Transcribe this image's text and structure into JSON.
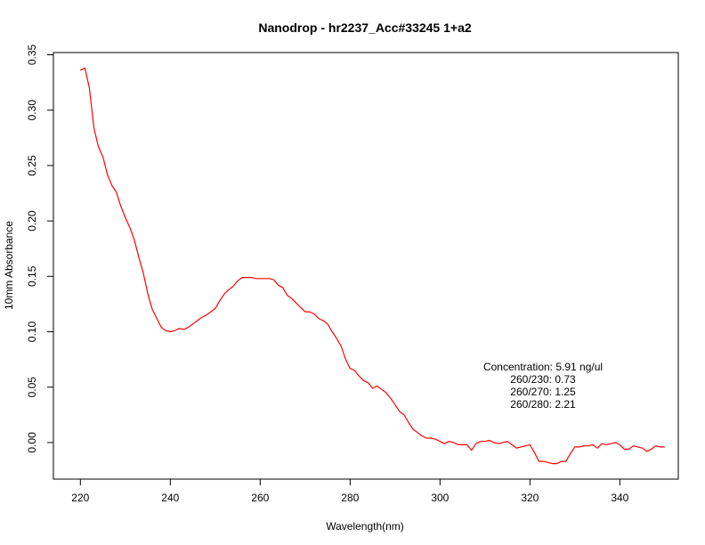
{
  "chart_data": {
    "type": "line",
    "title": "Nanodrop - hr2237_Acc#33245 1+a2",
    "xlabel": "Wavelength(nm)",
    "ylabel": "10mm Absorbance",
    "xlim": [
      214,
      353
    ],
    "ylim": [
      -0.033,
      0.352
    ],
    "xticks": [
      220,
      240,
      260,
      280,
      300,
      320,
      340
    ],
    "xtick_labels": [
      "220",
      "240",
      "260",
      "280",
      "300",
      "320",
      "340"
    ],
    "yticks": [
      0.0,
      0.05,
      0.1,
      0.15,
      0.2,
      0.25,
      0.3,
      0.35
    ],
    "ytick_labels": [
      "0.00",
      "0.05",
      "0.10",
      "0.15",
      "0.20",
      "0.25",
      "0.30",
      "0.35"
    ],
    "grid": false,
    "line_color": "#ff0000",
    "annotations": [
      "Concentration: 5.91 ng/ul",
      "260/230: 0.73",
      "260/270: 1.25",
      "260/280: 2.21"
    ],
    "series": [
      {
        "x": [
          220,
          221,
          222,
          223,
          224,
          225,
          226,
          227,
          228,
          229,
          230,
          231,
          232,
          233,
          234,
          235,
          236,
          237,
          238,
          239,
          240,
          241,
          242,
          243,
          244,
          245,
          246,
          247,
          248,
          249,
          250,
          251,
          252,
          253,
          254,
          255,
          256,
          257,
          258,
          259,
          260,
          261,
          262,
          263,
          264,
          265,
          266,
          267,
          268,
          269,
          270,
          271,
          272,
          273,
          274,
          275,
          276,
          277,
          278,
          279,
          280,
          281,
          282,
          283,
          284,
          285,
          286,
          287,
          288,
          289,
          290,
          291,
          292,
          293,
          294,
          295,
          296,
          297,
          298,
          299,
          300,
          301,
          302,
          303,
          304,
          305,
          306,
          307,
          308,
          309,
          310,
          311,
          312,
          313,
          314,
          315,
          316,
          317,
          318,
          319,
          320,
          321,
          322,
          323,
          324,
          325,
          326,
          327,
          328,
          329,
          330,
          331,
          332,
          333,
          334,
          335,
          336,
          337,
          338,
          339,
          340,
          341,
          342,
          343,
          344,
          345,
          346,
          347,
          348,
          349,
          350
        ],
        "values": [
          0.336,
          0.338,
          0.32,
          0.284,
          0.267,
          0.258,
          0.242,
          0.232,
          0.226,
          0.213,
          0.203,
          0.194,
          0.183,
          0.167,
          0.153,
          0.134,
          0.12,
          0.112,
          0.104,
          0.101,
          0.1,
          0.101,
          0.103,
          0.102,
          0.104,
          0.107,
          0.11,
          0.113,
          0.115,
          0.118,
          0.121,
          0.128,
          0.134,
          0.138,
          0.141,
          0.146,
          0.149,
          0.149,
          0.149,
          0.148,
          0.148,
          0.148,
          0.148,
          0.147,
          0.142,
          0.14,
          0.133,
          0.13,
          0.126,
          0.122,
          0.118,
          0.118,
          0.116,
          0.112,
          0.11,
          0.107,
          0.1,
          0.094,
          0.087,
          0.075,
          0.067,
          0.065,
          0.06,
          0.056,
          0.054,
          0.049,
          0.051,
          0.048,
          0.045,
          0.04,
          0.034,
          0.028,
          0.025,
          0.018,
          0.012,
          0.009,
          0.006,
          0.004,
          0.004,
          0.003,
          0.001,
          -0.001,
          0.001,
          0.0,
          -0.002,
          -0.002,
          -0.002,
          -0.007,
          -0.001,
          0.001,
          0.001,
          0.002,
          0.0,
          -0.001,
          0.0,
          0.001,
          -0.002,
          -0.005,
          -0.004,
          -0.003,
          -0.002,
          -0.009,
          -0.017,
          -0.017,
          -0.018,
          -0.019,
          -0.019,
          -0.017,
          -0.017,
          -0.01,
          -0.004,
          -0.004,
          -0.003,
          -0.003,
          -0.002,
          -0.005,
          -0.001,
          -0.002,
          -0.001,
          0.0,
          -0.002,
          -0.006,
          -0.006,
          -0.003,
          -0.004,
          -0.005,
          -0.008,
          -0.006,
          -0.003,
          -0.004,
          -0.004
        ]
      }
    ]
  }
}
